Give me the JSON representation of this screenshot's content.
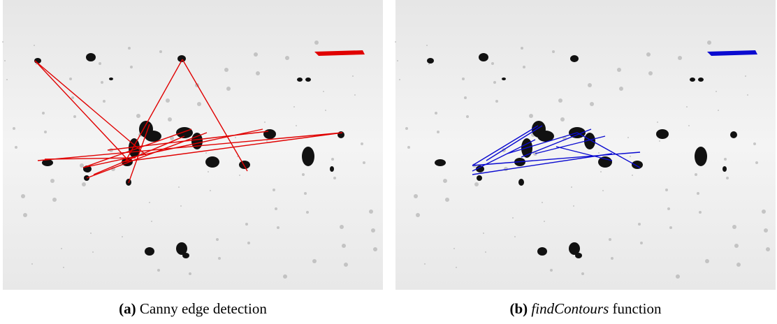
{
  "figures": [
    {
      "label": "(a)",
      "caption": "Canny edge detection"
    },
    {
      "label": "(b)",
      "caption_code": "findContours",
      "caption": "function"
    }
  ]
}
